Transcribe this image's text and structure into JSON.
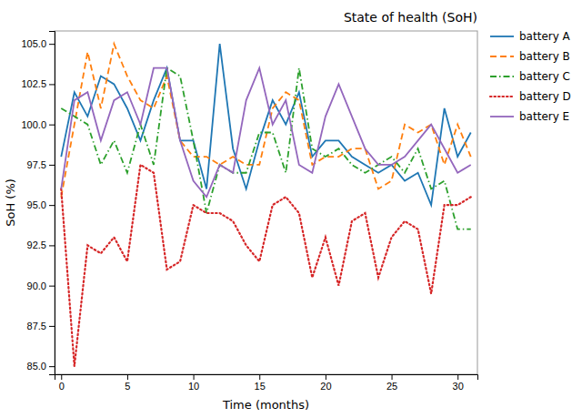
{
  "chart_data": {
    "type": "line",
    "title": "State of health (SoH)",
    "x_label": "Time (months)",
    "y_label": "SoH (%)",
    "x": [
      0,
      1,
      2,
      3,
      4,
      5,
      6,
      7,
      8,
      9,
      10,
      11,
      12,
      13,
      14,
      15,
      16,
      17,
      18,
      19,
      20,
      21,
      22,
      23,
      24,
      25,
      26,
      27,
      28,
      29,
      30,
      31
    ],
    "series": [
      {
        "name": "battery A",
        "line_style": "solid",
        "values": [
          98.0,
          102.0,
          100.5,
          103.0,
          102.5,
          101.0,
          99.0,
          101.5,
          103.5,
          99.0,
          99.0,
          96.0,
          105.0,
          98.5,
          96.0,
          99.0,
          101.5,
          100.0,
          102.0,
          98.0,
          99.0,
          99.0,
          98.0,
          97.5,
          97.0,
          97.5,
          96.5,
          97.0,
          95.0,
          101.0,
          98.0,
          99.5
        ]
      },
      {
        "name": "battery B",
        "line_style": "dashed",
        "values": [
          95.5,
          100.0,
          104.5,
          101.0,
          105.0,
          103.0,
          101.5,
          101.0,
          103.0,
          99.0,
          98.0,
          98.0,
          97.5,
          98.0,
          97.5,
          97.5,
          101.0,
          102.0,
          101.5,
          97.5,
          98.0,
          98.0,
          98.5,
          98.5,
          96.0,
          96.5,
          100.0,
          99.5,
          100.0,
          97.5,
          100.0,
          98.0
        ]
      },
      {
        "name": "battery C",
        "line_style": "dashdot",
        "values": [
          101.0,
          100.5,
          100.0,
          97.5,
          99.0,
          97.0,
          100.0,
          97.5,
          103.5,
          103.0,
          99.0,
          94.5,
          97.5,
          97.0,
          97.0,
          99.5,
          99.5,
          97.0,
          103.5,
          98.5,
          98.0,
          98.5,
          97.5,
          97.0,
          97.5,
          98.0,
          97.0,
          98.5,
          96.0,
          96.5,
          93.5,
          93.5
        ]
      },
      {
        "name": "battery D",
        "line_style": "dotted",
        "values": [
          96.0,
          85.0,
          92.5,
          92.0,
          93.0,
          91.5,
          97.5,
          97.0,
          91.0,
          91.5,
          95.0,
          94.5,
          94.5,
          94.0,
          92.5,
          91.5,
          95.0,
          95.5,
          94.5,
          90.5,
          93.0,
          90.0,
          94.0,
          94.5,
          90.5,
          93.0,
          94.0,
          93.5,
          89.5,
          95.0,
          95.0,
          95.5
        ]
      },
      {
        "name": "battery E",
        "line_style": "solid",
        "values": [
          96.0,
          101.5,
          102.0,
          99.0,
          101.5,
          102.0,
          100.0,
          103.5,
          103.5,
          99.0,
          96.5,
          95.5,
          97.5,
          97.0,
          101.5,
          103.5,
          100.0,
          101.5,
          97.5,
          97.0,
          100.5,
          102.5,
          100.5,
          98.5,
          97.5,
          97.5,
          98.0,
          99.0,
          100.0,
          98.5,
          97.0,
          97.5
        ]
      }
    ],
    "xlim": [
      -0.5,
      31.5
    ],
    "ylim": [
      84.5,
      105.8
    ],
    "xticks": [
      0,
      5,
      10,
      15,
      20,
      25,
      30
    ],
    "yticks": [
      {
        "value": 85.0,
        "label": "85.0"
      },
      87.5,
      {
        "value": 90.0,
        "label": "90.0"
      },
      92.5,
      {
        "value": 95.0,
        "label": "95.0"
      },
      97.5,
      {
        "value": 100.0,
        "label": "100.0"
      },
      102.5,
      {
        "value": 105.0,
        "label": "105.0"
      }
    ],
    "grid": false,
    "legend": "right"
  }
}
